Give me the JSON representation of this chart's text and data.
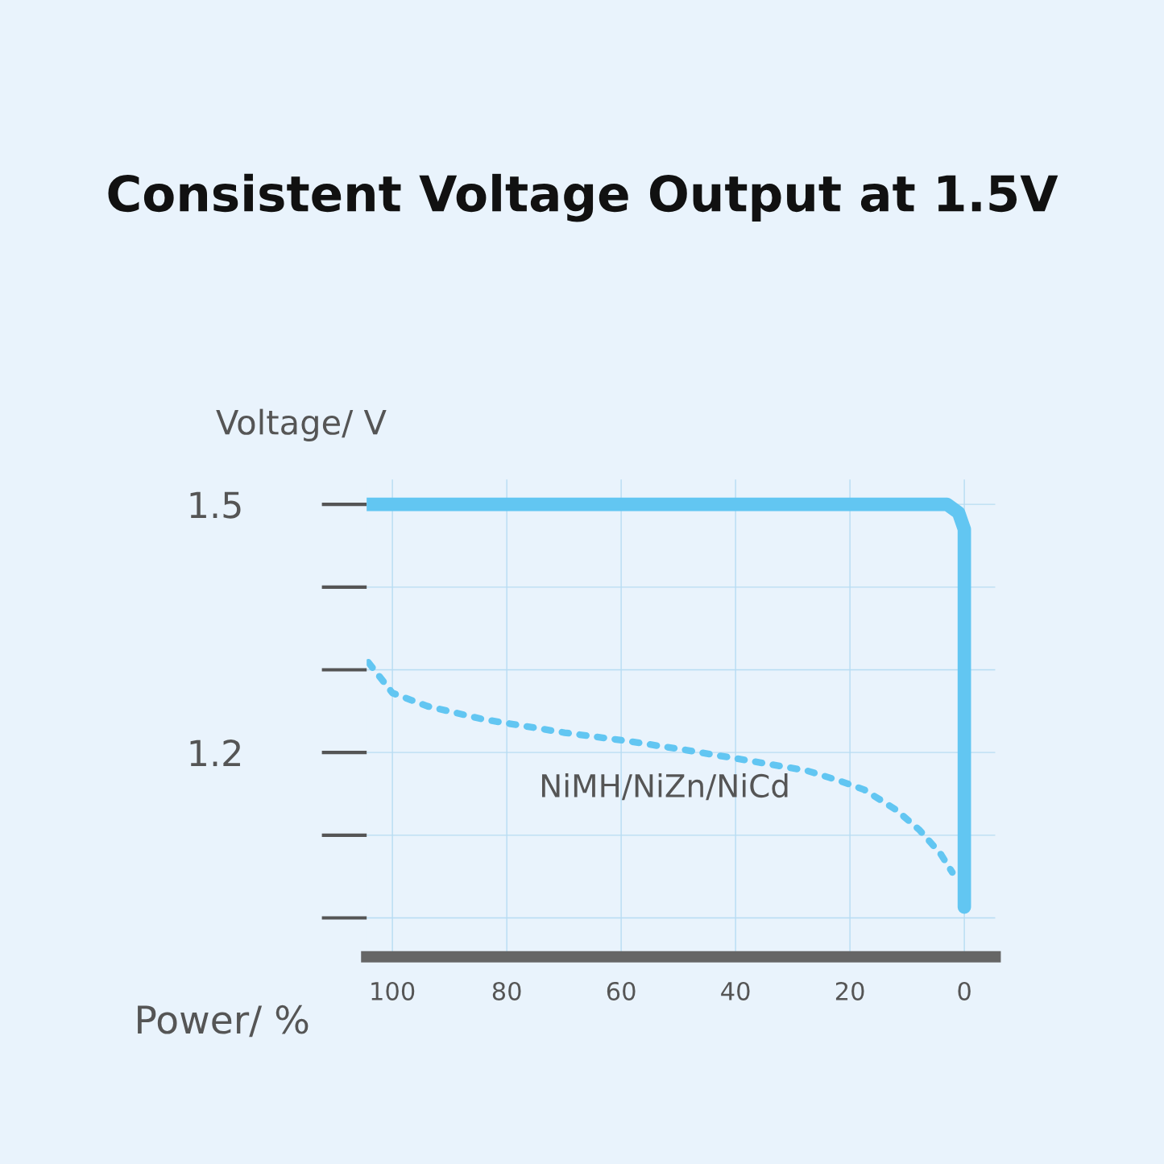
{
  "chart_data": {
    "type": "line",
    "title": "Consistent Voltage Output at 1.5V",
    "xlabel": "Power/ %",
    "ylabel": "Voltage/ V",
    "xlim": [
      104.5,
      -5.4
    ],
    "ylim": [
      0.953,
      1.53
    ],
    "xticks": [
      100,
      80,
      60,
      40,
      20,
      0
    ],
    "yticks": [
      1.5,
      {
        "value": 1.4,
        "label": null
      },
      {
        "value": 1.3,
        "label": null
      },
      1.2,
      {
        "value": 1.1,
        "label": null
      },
      {
        "value": 1.0,
        "label": null
      }
    ],
    "grid": true,
    "legend": false,
    "series": [
      {
        "color": "#62c6f2",
        "line_style": "solid",
        "x": [
          104.5,
          3,
          1,
          0,
          0
        ],
        "values": [
          1.5,
          1.5,
          1.49,
          1.47,
          1.013
        ]
      },
      {
        "name": "NiMH/NiZn/NiCd",
        "color": "#62c6f2",
        "line_style": "dotted",
        "x": [
          104.2,
          100,
          93.9,
          84,
          69.9,
          59,
          48.7,
          38.4,
          27.5,
          21.9,
          17.5,
          12,
          7.8,
          4.2,
          2.1
        ],
        "values": [
          1.309,
          1.272,
          1.256,
          1.24,
          1.224,
          1.214,
          1.203,
          1.191,
          1.178,
          1.166,
          1.155,
          1.131,
          1.106,
          1.078,
          1.055
        ]
      }
    ]
  }
}
